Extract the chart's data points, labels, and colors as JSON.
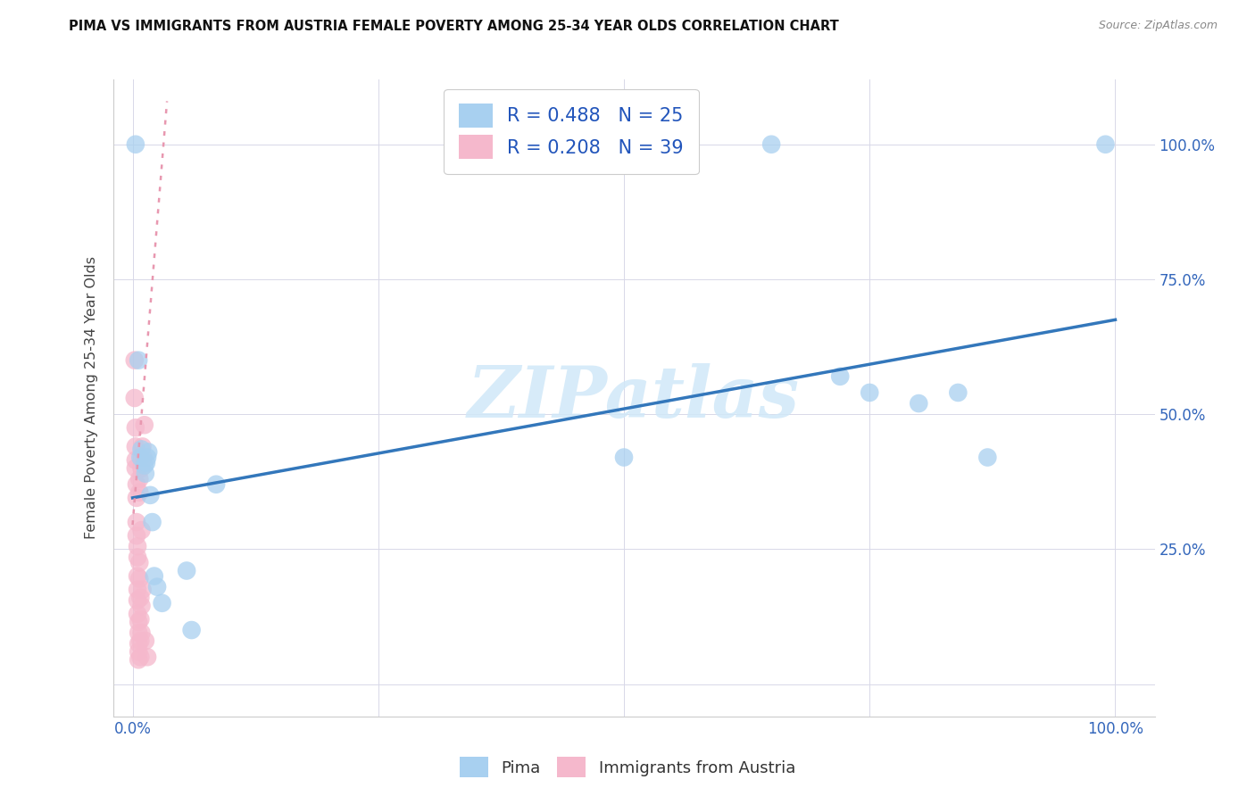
{
  "title": "PIMA VS IMMIGRANTS FROM AUSTRIA FEMALE POVERTY AMONG 25-34 YEAR OLDS CORRELATION CHART",
  "source": "Source: ZipAtlas.com",
  "ylabel": "Female Poverty Among 25-34 Year Olds",
  "pima_R": 0.488,
  "pima_N": 25,
  "austria_R": 0.208,
  "austria_N": 39,
  "pima_color": "#a8d0f0",
  "austria_color": "#f5b8cc",
  "pima_line_color": "#3377bb",
  "austria_line_color": "#e898b0",
  "watermark_text": "ZIPatlas",
  "watermark_color": "#d0e8f8",
  "pima_points": [
    [
      0.003,
      1.0
    ],
    [
      0.006,
      0.6
    ],
    [
      0.008,
      0.42
    ],
    [
      0.009,
      0.435
    ],
    [
      0.012,
      0.405
    ],
    [
      0.013,
      0.39
    ],
    [
      0.014,
      0.41
    ],
    [
      0.015,
      0.42
    ],
    [
      0.016,
      0.43
    ],
    [
      0.018,
      0.35
    ],
    [
      0.02,
      0.3
    ],
    [
      0.022,
      0.2
    ],
    [
      0.025,
      0.18
    ],
    [
      0.03,
      0.15
    ],
    [
      0.055,
      0.21
    ],
    [
      0.06,
      0.1
    ],
    [
      0.085,
      0.37
    ],
    [
      0.5,
      0.42
    ],
    [
      0.65,
      1.0
    ],
    [
      0.72,
      0.57
    ],
    [
      0.75,
      0.54
    ],
    [
      0.8,
      0.52
    ],
    [
      0.84,
      0.54
    ],
    [
      0.87,
      0.42
    ],
    [
      0.99,
      1.0
    ]
  ],
  "austria_points": [
    [
      0.002,
      0.6
    ],
    [
      0.002,
      0.53
    ],
    [
      0.003,
      0.475
    ],
    [
      0.003,
      0.44
    ],
    [
      0.003,
      0.415
    ],
    [
      0.003,
      0.4
    ],
    [
      0.004,
      0.37
    ],
    [
      0.004,
      0.345
    ],
    [
      0.004,
      0.3
    ],
    [
      0.004,
      0.275
    ],
    [
      0.005,
      0.255
    ],
    [
      0.005,
      0.235
    ],
    [
      0.005,
      0.2
    ],
    [
      0.005,
      0.175
    ],
    [
      0.005,
      0.155
    ],
    [
      0.005,
      0.13
    ],
    [
      0.006,
      0.115
    ],
    [
      0.006,
      0.095
    ],
    [
      0.006,
      0.075
    ],
    [
      0.006,
      0.06
    ],
    [
      0.006,
      0.045
    ],
    [
      0.007,
      0.38
    ],
    [
      0.007,
      0.355
    ],
    [
      0.007,
      0.225
    ],
    [
      0.007,
      0.195
    ],
    [
      0.008,
      0.16
    ],
    [
      0.008,
      0.12
    ],
    [
      0.008,
      0.08
    ],
    [
      0.008,
      0.05
    ],
    [
      0.009,
      0.4
    ],
    [
      0.009,
      0.285
    ],
    [
      0.009,
      0.145
    ],
    [
      0.009,
      0.095
    ],
    [
      0.01,
      0.44
    ],
    [
      0.01,
      0.175
    ],
    [
      0.011,
      0.42
    ],
    [
      0.012,
      0.48
    ],
    [
      0.013,
      0.08
    ],
    [
      0.015,
      0.05
    ]
  ],
  "xlim": [
    -0.02,
    1.04
  ],
  "ylim": [
    -0.06,
    1.12
  ],
  "pima_line_x": [
    0.0,
    1.0
  ],
  "pima_line_y": [
    0.345,
    0.675
  ],
  "austria_line_x": [
    0.0,
    0.035
  ],
  "austria_line_y": [
    0.295,
    1.08
  ],
  "xticks": [
    0.0,
    0.25,
    0.5,
    0.75,
    1.0
  ],
  "yticks": [
    0.0,
    0.25,
    0.5,
    0.75,
    1.0
  ],
  "xticklabels": [
    "0.0%",
    "",
    "",
    "",
    "100.0%"
  ],
  "yticklabels": [
    "",
    "25.0%",
    "50.0%",
    "75.0%",
    "100.0%"
  ]
}
